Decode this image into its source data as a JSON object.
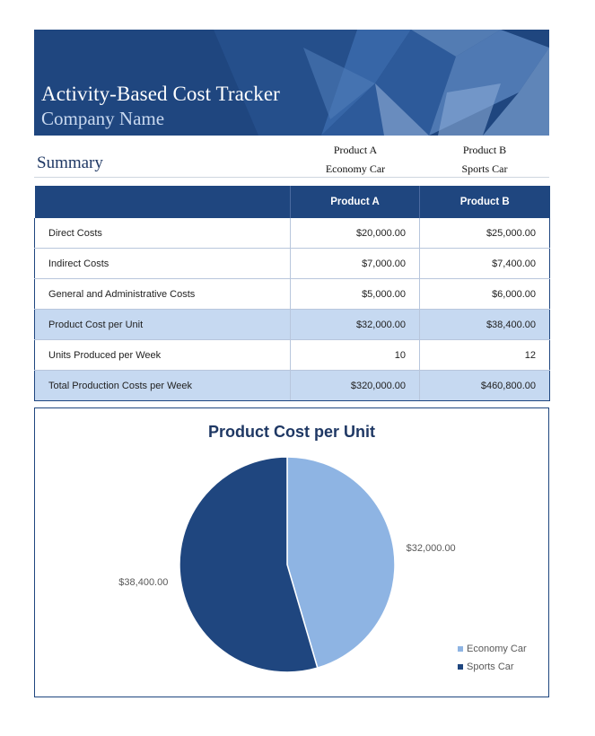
{
  "header": {
    "title": "Activity-Based Cost Tracker",
    "company": "Company Name"
  },
  "summary": {
    "title": "Summary",
    "product_a": {
      "label": "Product A",
      "name": "Economy Car"
    },
    "product_b": {
      "label": "Product B",
      "name": "Sports Car"
    }
  },
  "table": {
    "headers": [
      "",
      "Product A",
      "Product B"
    ],
    "rows": [
      {
        "label": "Direct Costs",
        "a": "$20,000.00",
        "b": "$25,000.00",
        "highlight": false
      },
      {
        "label": "Indirect Costs",
        "a": "$7,000.00",
        "b": "$7,400.00",
        "highlight": false
      },
      {
        "label": "General and Administrative Costs",
        "a": "$5,000.00",
        "b": "$6,000.00",
        "highlight": false
      },
      {
        "label": "Product Cost per Unit",
        "a": "$32,000.00",
        "b": "$38,400.00",
        "highlight": true
      },
      {
        "label": "Units Produced per Week",
        "a": "10",
        "b": "12",
        "highlight": false
      },
      {
        "label": "Total Production Costs per Week",
        "a": "$320,000.00",
        "b": "$460,800.00",
        "highlight": true
      }
    ]
  },
  "chart_data": {
    "type": "pie",
    "title": "Product Cost per Unit",
    "categories": [
      "Economy Car",
      "Sports Car"
    ],
    "values": [
      32000,
      38400
    ],
    "data_labels": [
      "$32,000.00",
      "$38,400.00"
    ],
    "colors": [
      "#8eb4e3",
      "#1f467f"
    ],
    "legend_position": "bottom-right"
  },
  "colors": {
    "banner": "#1f467f",
    "highlight_row": "#c6d9f1",
    "title_text": "#1f3864"
  }
}
